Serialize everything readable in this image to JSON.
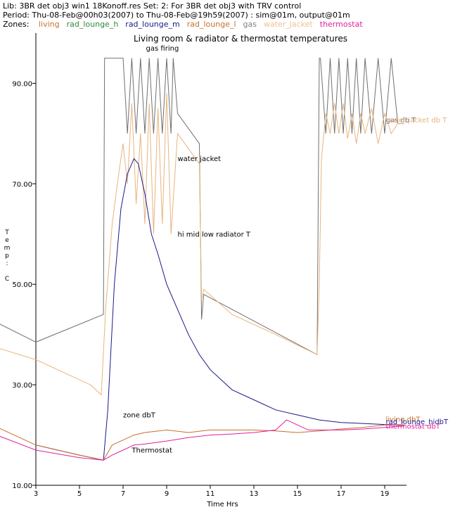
{
  "header": {
    "line1": "Lib: 3BR  det  obj3  win1  18Konoff.res Set:  2: For 3BR  det  obj3 with TRV control",
    "line2": "Period: Thu-08-Feb@00h03(2007) to Thu-08-Feb@19h59(2007) : sim@01m, output@01m",
    "zones_label": "Zones:",
    "zones": [
      {
        "name": "living",
        "color": "#c8702a"
      },
      {
        "name": "rad_lounge_h",
        "color": "#2e8b3a"
      },
      {
        "name": "rad_lounge_m",
        "color": "#1a1a8c"
      },
      {
        "name": "rad_lounge_l",
        "color": "#c8702a"
      },
      {
        "name": "gas",
        "color": "#808080"
      },
      {
        "name": "water_jacket",
        "color": "#f0c090"
      },
      {
        "name": "thermostat",
        "color": "#e020a0"
      }
    ]
  },
  "chart_data": {
    "type": "line",
    "title": "Living room & radiator & thermostat temperatures",
    "xlabel": "Time Hrs",
    "ylabel": "Temp: C",
    "xlim": [
      3,
      20
    ],
    "ylim": [
      10,
      100
    ],
    "xticks": [
      3,
      5,
      7,
      9,
      11,
      13,
      15,
      17,
      19
    ],
    "yticks": [
      10,
      30,
      50,
      70,
      90
    ],
    "ytick_labels": [
      "10.00",
      "30.00",
      "50.00",
      "70.00",
      "90.00"
    ],
    "series": [
      {
        "name": "gas db T",
        "color": "#707070",
        "x": [
          0,
          3,
          6.1,
          6.15,
          7,
          7.2,
          7.4,
          7.6,
          7.8,
          8.0,
          8.2,
          8.4,
          8.6,
          8.8,
          9.0,
          9.2,
          9.3,
          9.5,
          10.5,
          10.6,
          10.7,
          15.9,
          16.0,
          16.05,
          16.3,
          16.5,
          16.7,
          16.9,
          17.1,
          17.3,
          17.5,
          17.7,
          17.9,
          18.1,
          18.4,
          18.7,
          19.0,
          19.3,
          19.6,
          19.9
        ],
        "y": [
          45,
          38.5,
          44,
          95,
          95,
          80,
          95,
          80,
          95,
          80,
          95,
          80,
          95,
          80,
          95,
          80,
          95,
          84,
          78,
          43,
          48,
          36,
          95,
          95,
          80,
          95,
          80,
          95,
          80,
          95,
          80,
          95,
          80,
          95,
          80,
          95,
          80,
          95,
          82,
          82
        ]
      },
      {
        "name": "water jacket",
        "color": "#e8b47e",
        "x": [
          0,
          3,
          5.5,
          6.0,
          6.2,
          6.5,
          6.8,
          7.0,
          7.2,
          7.4,
          7.6,
          7.8,
          8.0,
          8.2,
          8.4,
          8.6,
          8.8,
          9.0,
          9.2,
          9.5,
          10.5,
          10.6,
          10.7,
          12,
          14,
          15.9,
          16.0,
          16.1,
          16.3,
          16.5,
          16.7,
          16.9,
          17.1,
          17.3,
          17.5,
          17.7,
          17.9,
          18.1,
          18.4,
          18.7,
          19.0,
          19.3,
          19.6,
          19.9
        ],
        "y": [
          39,
          35,
          30,
          28,
          45,
          62,
          72,
          78,
          70,
          86,
          66,
          80,
          62,
          86,
          60,
          85,
          62,
          88,
          60,
          80,
          74,
          47,
          49,
          44,
          40,
          36,
          50,
          75,
          84,
          80,
          86,
          80,
          86,
          79,
          84,
          78,
          84,
          80,
          85,
          78,
          84,
          80,
          82,
          82
        ]
      },
      {
        "name": "hi mid low radiator T",
        "color": "#1a1a8c",
        "x": [
          3,
          5,
          6.1,
          6.3,
          6.6,
          6.9,
          7.2,
          7.5,
          7.7,
          8.0,
          8.3,
          8.6,
          9.0,
          9.5,
          10,
          10.5,
          11,
          11.5,
          12,
          13,
          14,
          15,
          16,
          17,
          18,
          19,
          19.9
        ],
        "y": [
          18,
          16,
          15,
          25,
          50,
          65,
          72,
          75,
          74,
          68,
          60,
          56,
          50,
          45,
          40,
          36,
          33,
          31,
          29,
          27,
          25,
          24,
          23,
          22.5,
          22.3,
          22.1,
          22
        ]
      },
      {
        "name": "living dbT",
        "color": "#c8702a",
        "x": [
          0,
          3,
          5,
          6.1,
          6.5,
          7,
          7.5,
          8,
          9,
          10,
          11,
          12,
          13,
          14,
          15,
          16,
          17,
          18,
          19,
          19.9
        ],
        "y": [
          24,
          18,
          16,
          15,
          18,
          19,
          20,
          20.5,
          21,
          20.5,
          21,
          21,
          21,
          20.8,
          20.5,
          20.8,
          21.2,
          21.5,
          22,
          22
        ]
      },
      {
        "name": "thermostat dbT",
        "color": "#e020a0",
        "x": [
          0,
          3,
          5,
          6.1,
          6.5,
          7,
          7.5,
          8,
          9,
          10,
          11,
          12,
          13,
          14,
          14.5,
          15,
          15.5,
          16,
          17,
          18,
          19,
          19.9
        ],
        "y": [
          22,
          17,
          15.5,
          15,
          16,
          17,
          18,
          18.2,
          18.8,
          19.5,
          20,
          20.2,
          20.5,
          21,
          23,
          22,
          21,
          21,
          21,
          21.2,
          21.5,
          21.8
        ]
      }
    ],
    "annotations": [
      {
        "text": "gas firing",
        "x": 8.05,
        "y": 96.5
      },
      {
        "text": "water jacket",
        "x": 9.5,
        "y": 74.5
      },
      {
        "text": "hi mid low radiator T",
        "x": 9.5,
        "y": 59.5
      },
      {
        "text": "zone dbT",
        "x": 7.0,
        "y": 23.5
      },
      {
        "text": "Thermostat",
        "x": 7.4,
        "y": 16.5
      },
      {
        "text": "gas db T",
        "x": 19.05,
        "y": 82.2
      },
      {
        "text": "water jacket db T",
        "x": 19.05,
        "y": 82.2
      },
      {
        "text": "living dbT",
        "x": 19.05,
        "y": 22.7
      },
      {
        "text": "rad_lounge_hidbT",
        "x": 19.05,
        "y": 22.2
      },
      {
        "text": "thermostat dbT",
        "x": 19.05,
        "y": 21.3
      }
    ],
    "grid": false,
    "legend": "top"
  }
}
